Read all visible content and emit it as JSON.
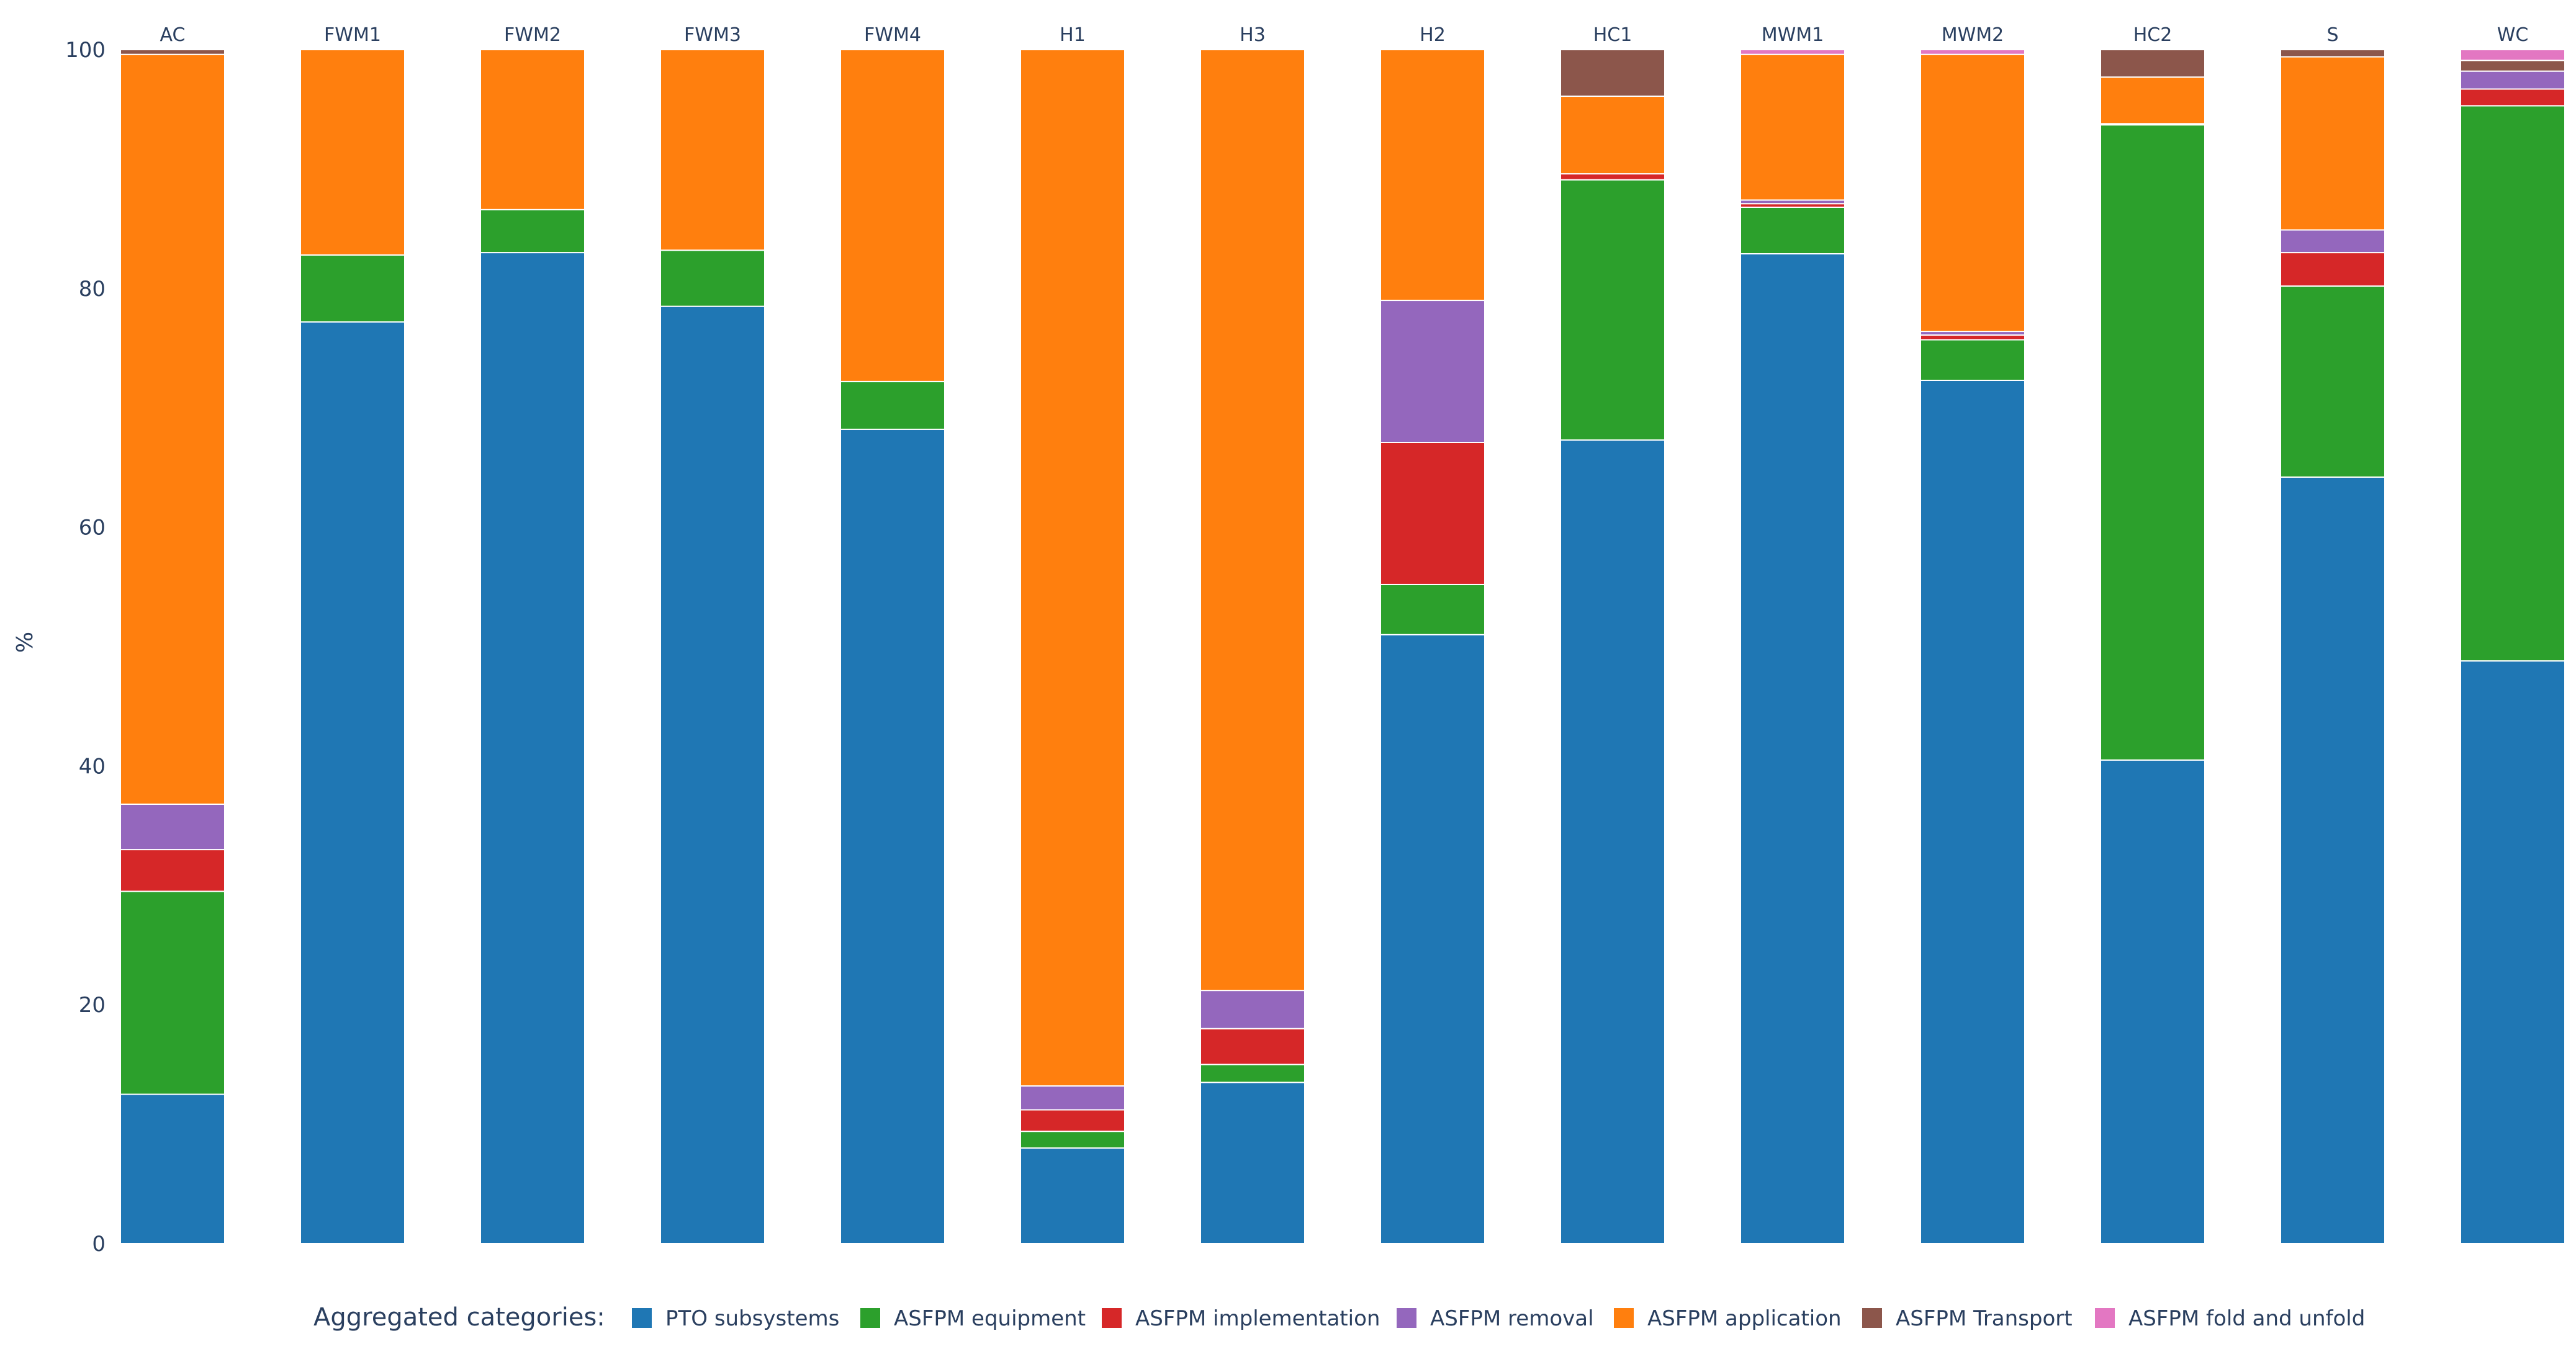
{
  "chart_data": {
    "type": "bar",
    "stacked": true,
    "ylabel": "%",
    "ylim": [
      0,
      100
    ],
    "yticks": [
      0,
      20,
      40,
      60,
      80,
      100
    ],
    "categories": [
      "AC",
      "FWM1",
      "FWM2",
      "FWM3",
      "FWM4",
      "H1",
      "H3",
      "H2",
      "HC1",
      "MWM1",
      "MWM2",
      "HC2",
      "S",
      "WC"
    ],
    "legend_title": "Aggregated categories:",
    "legend_position": "bottom",
    "series": [
      {
        "name": "PTO subsystems",
        "color": "#1f77b4",
        "values": [
          12.5,
          77.2,
          83.0,
          78.5,
          68.2,
          8.0,
          13.5,
          51.0,
          67.3,
          82.9,
          72.3,
          40.5,
          64.2,
          48.8
        ]
      },
      {
        "name": "ASFPM equipment",
        "color": "#2ca02c",
        "values": [
          17.0,
          5.6,
          3.6,
          4.7,
          4.0,
          1.4,
          1.5,
          4.2,
          21.8,
          3.9,
          3.4,
          53.2,
          16.0,
          46.5
        ]
      },
      {
        "name": "ASFPM implementation",
        "color": "#d62728",
        "values": [
          3.5,
          0,
          0,
          0,
          0,
          1.8,
          3.0,
          11.9,
          0.5,
          0.3,
          0.4,
          0.1,
          2.8,
          1.4
        ]
      },
      {
        "name": "ASFPM removal",
        "color": "#9467bd",
        "values": [
          3.8,
          0,
          0,
          0,
          0,
          2.0,
          3.2,
          11.9,
          0,
          0.3,
          0.3,
          0,
          1.9,
          1.5
        ]
      },
      {
        "name": "ASFPM application",
        "color": "#ff7f0e",
        "values": [
          62.8,
          17.2,
          13.4,
          16.8,
          27.8,
          86.8,
          78.8,
          21.0,
          6.5,
          12.2,
          23.2,
          3.9,
          14.5,
          0
        ]
      },
      {
        "name": "ASFPM Transport",
        "color": "#8c564b",
        "values": [
          0.4,
          0,
          0,
          0,
          0,
          0,
          0,
          0,
          3.9,
          0,
          0,
          2.3,
          0.6,
          0.9
        ]
      },
      {
        "name": "ASFPM fold and unfold",
        "color": "#e377c2",
        "values": [
          0,
          0,
          0,
          0,
          0,
          0,
          0,
          0,
          0,
          0.4,
          0.4,
          0,
          0,
          0.9
        ]
      }
    ]
  }
}
